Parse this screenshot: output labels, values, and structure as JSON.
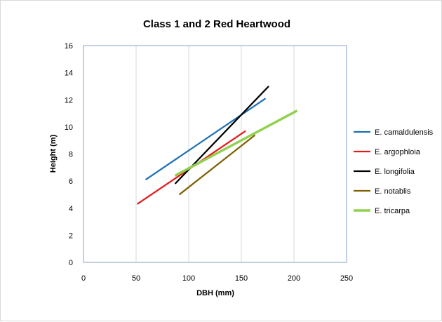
{
  "chart_data": {
    "type": "line",
    "title": "Class 1 and 2 Red Heartwood",
    "xlabel": "DBH (mm)",
    "ylabel": "Height (m)",
    "xlim": [
      0,
      250
    ],
    "ylim": [
      0,
      16
    ],
    "x_ticks": [
      0,
      50,
      100,
      150,
      200,
      250
    ],
    "y_ticks": [
      0,
      2,
      4,
      6,
      8,
      10,
      12,
      14,
      16
    ],
    "grid": "vertical",
    "legend_position": "right",
    "series": [
      {
        "name": "E. camaldulensis",
        "color": "#1f6fb4",
        "x": [
          59,
          173
        ],
        "y": [
          6.1,
          12.1
        ]
      },
      {
        "name": "E. argophloia",
        "color": "#e41a1c",
        "x": [
          51,
          154
        ],
        "y": [
          4.3,
          9.7
        ]
      },
      {
        "name": "E. longifolia",
        "color": "#000000",
        "x": [
          87,
          176
        ],
        "y": [
          5.8,
          13.0
        ]
      },
      {
        "name": "E. notablis",
        "color": "#7f6000",
        "x": [
          91,
          163
        ],
        "y": [
          5.0,
          9.4
        ]
      },
      {
        "name": "E. tricarpa",
        "color": "#92d050",
        "x": [
          87,
          203
        ],
        "y": [
          6.4,
          11.2
        ]
      }
    ]
  }
}
